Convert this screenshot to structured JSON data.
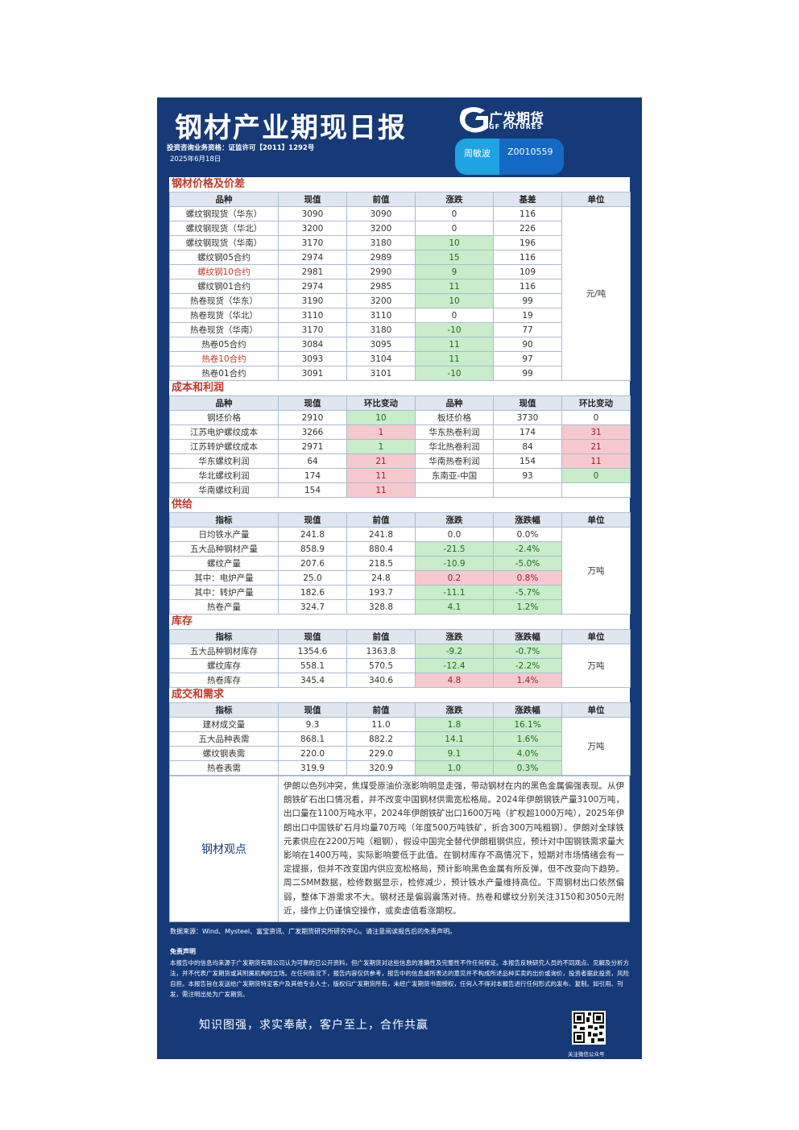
{
  "header": {
    "title": "钢材产业期现日报",
    "license": "投资咨询业务资格：证监许可【2011】1292号",
    "date": "2025年6月18日",
    "brand": "广发期货",
    "brand_en": "GF FUTURES",
    "analyst": "周敏波",
    "analyst_id": "Z0010559"
  },
  "sections": [
    {
      "title": "钢材价格及价差",
      "columns": [
        "品种",
        "现值",
        "前值",
        "涨跌",
        "基差",
        "单位"
      ],
      "unit": "元/吨",
      "rows": [
        {
          "cells": [
            "螺纹钢现货（华东）",
            "3090",
            "3090",
            "0",
            "116"
          ]
        },
        {
          "cells": [
            "螺纹钢现货（华北）",
            "3200",
            "3200",
            "0",
            "226"
          ]
        },
        {
          "cells": [
            "螺纹钢现货（华南）",
            "3170",
            "3180",
            "10",
            "196"
          ],
          "tones": {
            "3": "down"
          }
        },
        {
          "cells": [
            "螺纹钢05合约",
            "2974",
            "2989",
            "15",
            "116"
          ],
          "tones": {
            "3": "down"
          }
        },
        {
          "cells": [
            "螺纹钢10合约",
            "2981",
            "2990",
            "9",
            "109"
          ],
          "tones": {
            "3": "down"
          },
          "highlight": true
        },
        {
          "cells": [
            "螺纹钢01合约",
            "2974",
            "2985",
            "11",
            "116"
          ],
          "tones": {
            "3": "down"
          }
        },
        {
          "cells": [
            "热卷现货（华东）",
            "3190",
            "3200",
            "10",
            "99"
          ],
          "tones": {
            "3": "down"
          }
        },
        {
          "cells": [
            "热卷现货（华北）",
            "3110",
            "3110",
            "0",
            "19"
          ]
        },
        {
          "cells": [
            "热卷现货（华南）",
            "3170",
            "3180",
            "-10",
            "77"
          ],
          "tones": {
            "3": "down"
          }
        },
        {
          "cells": [
            "热卷05合约",
            "3084",
            "3095",
            "11",
            "90"
          ],
          "tones": {
            "3": "down"
          }
        },
        {
          "cells": [
            "热卷10合约",
            "3093",
            "3104",
            "11",
            "97"
          ],
          "tones": {
            "3": "down"
          },
          "highlight": true
        },
        {
          "cells": [
            "热卷01合约",
            "3091",
            "3101",
            "-10",
            "99"
          ],
          "tones": {
            "3": "down"
          }
        }
      ]
    },
    {
      "title": "成本和利润",
      "columns": [
        "品种",
        "现值",
        "环比变动",
        "品种",
        "现值",
        "环比变动"
      ],
      "rows": [
        {
          "cells": [
            "钢坯价格",
            "2910",
            "10",
            "板坯价格",
            "3730",
            "0"
          ],
          "tones": {
            "2": "down"
          }
        },
        {
          "cells": [
            "江苏电炉螺纹成本",
            "3266",
            "1",
            "华东热卷利润",
            "174",
            "31"
          ],
          "tones": {
            "2": "up",
            "5": "up"
          }
        },
        {
          "cells": [
            "江苏转炉螺纹成本",
            "2971",
            "1",
            "华北热卷利润",
            "84",
            "21"
          ],
          "tones": {
            "2": "down",
            "5": "up"
          }
        },
        {
          "cells": [
            "华东螺纹利润",
            "64",
            "21",
            "华南热卷利润",
            "154",
            "11"
          ],
          "tones": {
            "2": "up",
            "5": "up"
          }
        },
        {
          "cells": [
            "华北螺纹利润",
            "174",
            "11",
            "东南亚-中国",
            "93",
            "0"
          ],
          "tones": {
            "2": "up",
            "5": "down"
          }
        },
        {
          "cells": [
            "华南螺纹利润",
            "154",
            "11"
          ],
          "tones": {
            "2": "up"
          }
        }
      ]
    },
    {
      "title": "供给",
      "columns": [
        "指标",
        "现值",
        "前值",
        "涨跌",
        "涨跌幅",
        "单位"
      ],
      "unit": "万吨",
      "rows": [
        {
          "cells": [
            "日均铁水产量",
            "241.8",
            "241.8",
            "0.0",
            "0.0%"
          ]
        },
        {
          "cells": [
            "五大品种钢材产量",
            "858.9",
            "880.4",
            "-21.5",
            "-2.4%"
          ],
          "tones": {
            "3": "down",
            "4": "down"
          }
        },
        {
          "cells": [
            "螺纹产量",
            "207.6",
            "218.5",
            "-10.9",
            "-5.0%"
          ],
          "tones": {
            "3": "down",
            "4": "down"
          }
        },
        {
          "cells": [
            "其中：电炉产量",
            "25.0",
            "24.8",
            "0.2",
            "0.8%"
          ],
          "tones": {
            "3": "up",
            "4": "up"
          }
        },
        {
          "cells": [
            "其中：转炉产量",
            "182.6",
            "193.7",
            "-11.1",
            "-5.7%"
          ],
          "tones": {
            "3": "down",
            "4": "down"
          }
        },
        {
          "cells": [
            "热卷产量",
            "324.7",
            "328.8",
            "4.1",
            "1.2%"
          ],
          "tones": {
            "3": "down",
            "4": "down"
          }
        }
      ]
    },
    {
      "title": "库存",
      "columns": [
        "指标",
        "现值",
        "前值",
        "涨跌",
        "涨跌幅",
        "单位"
      ],
      "unit": "万吨",
      "rows": [
        {
          "cells": [
            "五大品种钢材库存",
            "1354.6",
            "1363.8",
            "-9.2",
            "-0.7%"
          ],
          "tones": {
            "3": "down",
            "4": "down"
          }
        },
        {
          "cells": [
            "螺纹库存",
            "558.1",
            "570.5",
            "-12.4",
            "-2.2%"
          ],
          "tones": {
            "3": "down",
            "4": "down"
          }
        },
        {
          "cells": [
            "热卷库存",
            "345.4",
            "340.6",
            "4.8",
            "1.4%"
          ],
          "tones": {
            "3": "up",
            "4": "up"
          }
        }
      ]
    },
    {
      "title": "成交和需求",
      "columns": [
        "指标",
        "现值",
        "前值",
        "涨跌",
        "涨跌幅",
        "单位"
      ],
      "unit": "万吨",
      "rows": [
        {
          "cells": [
            "建材成交量",
            "9.3",
            "11.0",
            "1.8",
            "16.1%"
          ],
          "tones": {
            "3": "down",
            "4": "down"
          }
        },
        {
          "cells": [
            "五大品种表需",
            "868.1",
            "882.2",
            "14.1",
            "1.6%"
          ],
          "tones": {
            "3": "down",
            "4": "down"
          }
        },
        {
          "cells": [
            "螺纹钢表需",
            "220.0",
            "229.0",
            "9.1",
            "4.0%"
          ],
          "tones": {
            "3": "down",
            "4": "down"
          }
        },
        {
          "cells": [
            "热卷表需",
            "319.9",
            "320.9",
            "1.0",
            "0.3%"
          ],
          "tones": {
            "3": "down",
            "4": "down"
          }
        }
      ]
    }
  ],
  "view": {
    "label": "钢材观点",
    "text": "伊朗以色列冲突，焦煤受原油价涨影响明显走强，带动钢材在内的黑色金属偏强表现。从伊朗铁矿石出口情况看，并不改变中国钢材供需宽松格局。2024年伊朗钢铁产量3100万吨，出口量在1100万吨水平，2024年伊朗铁矿出口1600万吨（扩权超1000万吨），2025年伊朗出口中国铁矿石月均量70万吨（年度500万吨铁矿，折合300万吨粗钢）。伊朗对全球铁元素供应在2200万吨（粗钢），假设中国完全替代伊朗粗钢供应，预计对中国钢铁需求量大影响在1400万吨，实际影响要低于此值。在钢材库存不高情况下，短期对市场情绪会有一定提振，但并不改变国内供应宽松格局，预计影响黑色金属有所反弹，但不改变向下趋势。周二SMM数据，检修数据显示，检修减少，预计铁水产量维持高位。下周钢材出口依然偏弱，整体下游需求不大。钢材还是偏弱震荡对待。热卷和螺纹分别关注3150和3050元附近，操作上仍谨慎空操作，或卖虚值看涨期权。"
  },
  "footer": {
    "source": "数据来源：Wind、Mysteel、富宝资讯、广发期货研究所研究中心。请注意阅读报告后的免责声明。",
    "disclaimer_title": "免责声明",
    "disclaimer": "本报告中的信息均来源于广发期货有限公司认为可靠的已公开资料，但广发期货对这些信息的准确性及完整性不作任何保证。本报告反映研究人员的不同观点、见解及分析方法，并不代表广发期货或其附属机构的立场。在任何情况下，报告内容仅供参考，报告中的信息或所表达的意见并不构成所述品种买卖的出价或询价，投资者据此投资，风险自担。本报告旨在发送给广发期货特定客户及其他专业人士，版权归广发期货所有，未经广发期货书面授权，任何人不得对本报告进行任何形式的发布、复制。如引用、刊发，需注明出处为广发期货。",
    "slogan": "知识图强，求实奉献，客户至上，合作共赢",
    "qr_caption": "关注微信公众号"
  }
}
